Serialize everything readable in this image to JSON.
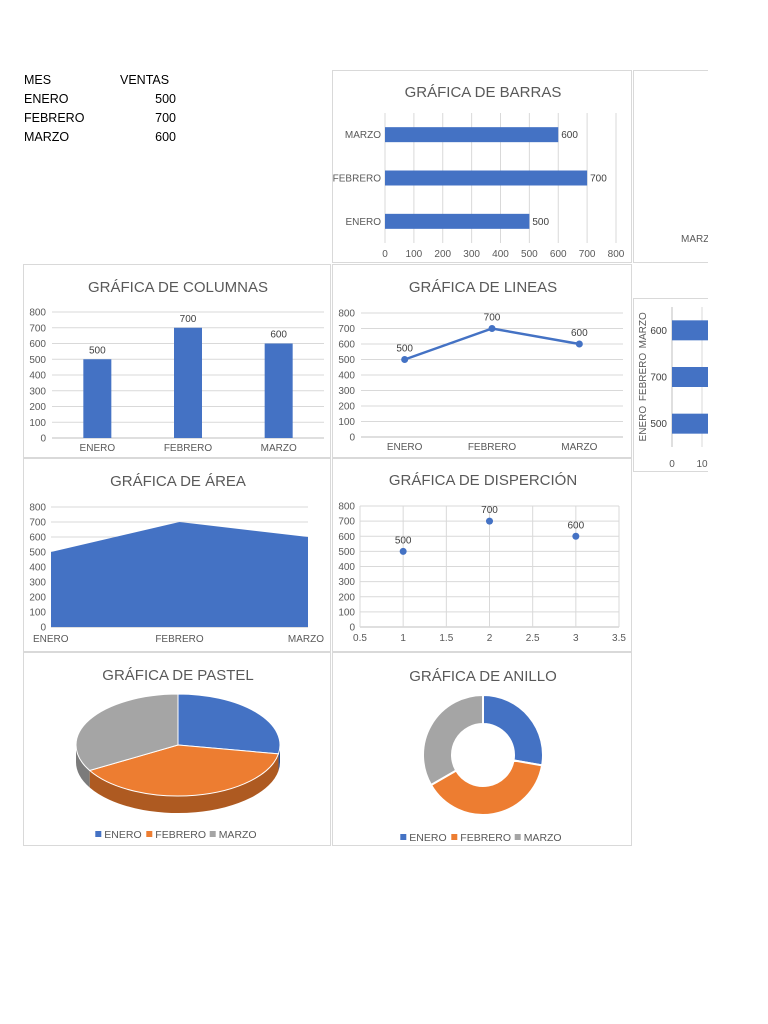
{
  "table": {
    "headers": [
      "MES",
      "VENTAS"
    ],
    "rows": [
      {
        "mes": "ENERO",
        "ventas": "500"
      },
      {
        "mes": "FEBRERO",
        "ventas": "700"
      },
      {
        "mes": "MARZO",
        "ventas": "600"
      }
    ]
  },
  "colors": {
    "blue": "#4472c4",
    "orange": "#ed7d31",
    "gray": "#a5a5a5"
  },
  "chart_data": [
    {
      "id": "barras",
      "type": "bar",
      "orientation": "horizontal",
      "title": "GRÁFICA DE BARRAS",
      "categories": [
        "ENERO",
        "FEBRERO",
        "MARZO"
      ],
      "values": [
        500,
        700,
        600
      ],
      "xlim": [
        0,
        800
      ],
      "ticks": [
        "0",
        "100",
        "200",
        "300",
        "400",
        "500",
        "600",
        "700",
        "800"
      ],
      "grid": true
    },
    {
      "id": "barras2",
      "type": "bar",
      "orientation": "horizontal",
      "title": "",
      "categories": [
        "ENERO",
        "FEBRERO",
        "MARZO"
      ],
      "values": [
        500,
        700,
        600
      ],
      "partially_visible": true,
      "visible_tick_labels": [
        "0",
        "10"
      ],
      "visible_category_labels": [
        "MARZO"
      ]
    },
    {
      "id": "columnas",
      "type": "bar",
      "orientation": "vertical",
      "title": "GRÁFICA DE COLUMNAS",
      "categories": [
        "ENERO",
        "FEBRERO",
        "MARZO"
      ],
      "values": [
        500,
        700,
        600
      ],
      "ylim": [
        0,
        800
      ],
      "ticks": [
        "0",
        "100",
        "200",
        "300",
        "400",
        "500",
        "600",
        "700",
        "800"
      ],
      "grid": true
    },
    {
      "id": "lineas",
      "type": "line",
      "title": "GRÁFICA DE LINEAS",
      "categories": [
        "ENERO",
        "FEBRERO",
        "MARZO"
      ],
      "values": [
        500,
        700,
        600
      ],
      "ylim": [
        0,
        800
      ],
      "ticks": [
        "0",
        "100",
        "200",
        "300",
        "400",
        "500",
        "600",
        "700",
        "800"
      ],
      "grid": true
    },
    {
      "id": "area",
      "type": "area",
      "title": "GRÁFICA DE ÁREA",
      "categories": [
        "ENERO",
        "FEBRERO",
        "MARZO"
      ],
      "values": [
        500,
        700,
        600
      ],
      "ylim": [
        0,
        800
      ],
      "ticks": [
        "0",
        "100",
        "200",
        "300",
        "400",
        "500",
        "600",
        "700",
        "800"
      ],
      "grid": true
    },
    {
      "id": "dispersion",
      "type": "scatter",
      "title": "GRÁFICA DE DISPERCIÓN",
      "x": [
        1,
        2,
        3
      ],
      "values": [
        500,
        700,
        600
      ],
      "xlim": [
        0.5,
        3.5
      ],
      "xticks": [
        "0.5",
        "1",
        "1.5",
        "2",
        "2.5",
        "3",
        "3.5"
      ],
      "ylim": [
        0,
        800
      ],
      "ticks": [
        "0",
        "100",
        "200",
        "300",
        "400",
        "500",
        "600",
        "700",
        "800"
      ],
      "grid": true
    },
    {
      "id": "pastel",
      "type": "pie",
      "title": "GRÁFICA DE PASTEL",
      "categories": [
        "ENERO",
        "FEBRERO",
        "MARZO"
      ],
      "values": [
        500,
        700,
        600
      ],
      "legend": "bottom"
    },
    {
      "id": "anillo",
      "type": "doughnut",
      "title": "GRÁFICA DE ANILLO",
      "categories": [
        "ENERO",
        "FEBRERO",
        "MARZO"
      ],
      "values": [
        500,
        700,
        600
      ],
      "legend": "bottom"
    }
  ]
}
